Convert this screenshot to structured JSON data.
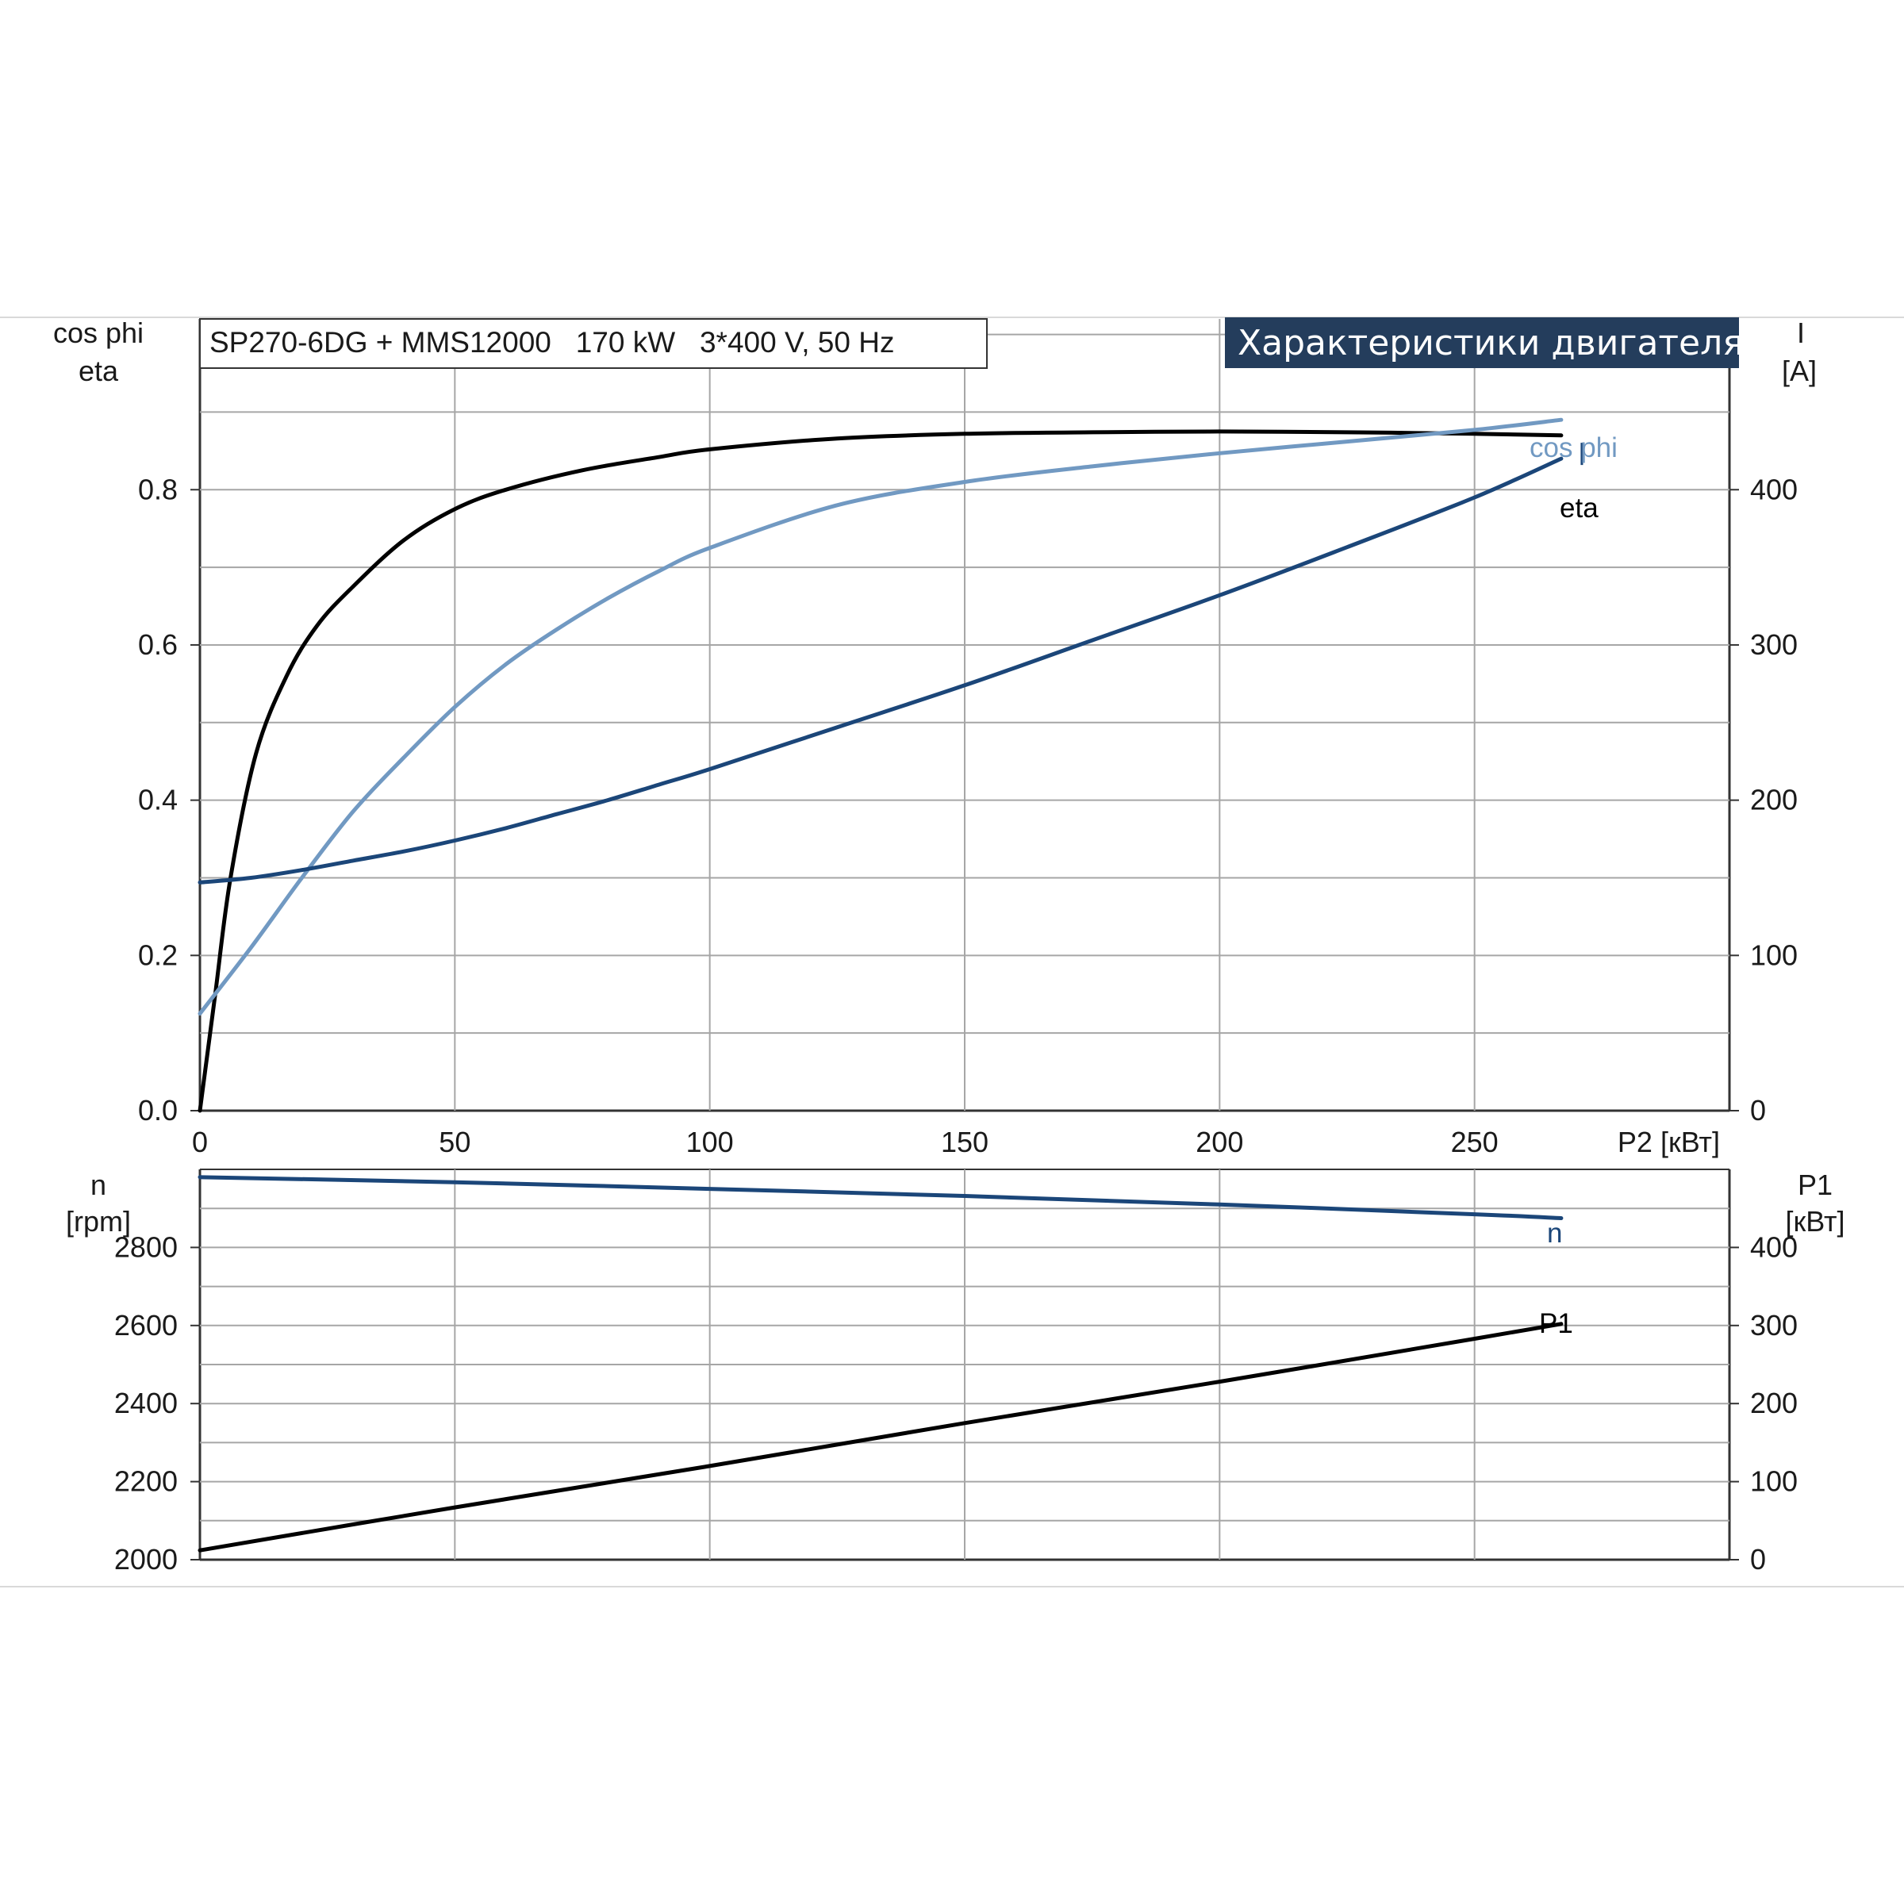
{
  "header": {
    "model_label": "SP270-6DG + MMS12000   170 kW   3*400 V, 50 Hz",
    "title": "Характеристики двигателя"
  },
  "colors": {
    "eta": "#000000",
    "cos_phi": "#7199c2",
    "current": "#1b4679",
    "speed": "#1b4679",
    "p1": "#000000",
    "title_bg": "#243d5c",
    "grid": "#a6a6a6"
  },
  "chart_data": [
    {
      "type": "line",
      "xlabel": "P2 [кВт]",
      "xlim": [
        0,
        300
      ],
      "xticks": [
        0,
        50,
        100,
        150,
        200,
        250
      ],
      "ylabel_left": [
        "cos phi",
        "eta"
      ],
      "ylim_left": [
        0,
        1.02
      ],
      "yticks_left": [
        0.0,
        0.2,
        0.4,
        0.6,
        0.8
      ],
      "ylabel_right": [
        "I",
        "[A]"
      ],
      "ylim_right": [
        0,
        510
      ],
      "yticks_right": [
        0,
        100,
        200,
        300,
        400
      ],
      "grid": true,
      "series": [
        {
          "name": "eta",
          "axis": "left",
          "x": [
            0,
            3,
            6,
            11,
            17,
            23,
            30,
            40,
            50,
            60,
            75,
            90,
            100,
            125,
            150,
            175,
            200,
            225,
            250,
            267
          ],
          "y": [
            0.0,
            0.15,
            0.3,
            0.46,
            0.56,
            0.625,
            0.675,
            0.735,
            0.775,
            0.8,
            0.825,
            0.842,
            0.852,
            0.866,
            0.872,
            0.874,
            0.875,
            0.874,
            0.872,
            0.87
          ]
        },
        {
          "name": "cos phi",
          "axis": "left",
          "x": [
            0,
            10,
            20,
            30,
            40,
            50,
            60,
            70,
            80,
            90,
            100,
            125,
            150,
            175,
            200,
            225,
            250,
            267
          ],
          "y": [
            0.125,
            0.21,
            0.3,
            0.385,
            0.455,
            0.52,
            0.575,
            0.62,
            0.66,
            0.695,
            0.725,
            0.78,
            0.81,
            0.83,
            0.847,
            0.862,
            0.877,
            0.89
          ]
        },
        {
          "name": "I",
          "axis": "right",
          "x": [
            0,
            10,
            20,
            30,
            40,
            50,
            60,
            70,
            80,
            90,
            100,
            125,
            150,
            175,
            200,
            225,
            250,
            267
          ],
          "y": [
            147,
            150,
            155,
            161,
            167,
            174,
            182,
            191,
            200,
            210,
            220,
            247,
            274,
            303,
            332,
            363,
            395,
            420
          ]
        }
      ]
    },
    {
      "type": "line",
      "xlim": [
        0,
        300
      ],
      "ylabel_left": [
        "n",
        "[rpm]"
      ],
      "ylim_left": [
        2000,
        3000
      ],
      "yticks_left": [
        2000,
        2200,
        2400,
        2600,
        2800
      ],
      "ylabel_right": [
        "P1",
        "[кВт]"
      ],
      "ylim_right": [
        0,
        500
      ],
      "yticks_right": [
        0,
        100,
        200,
        300,
        400
      ],
      "grid": true,
      "series": [
        {
          "name": "n",
          "axis": "left",
          "x": [
            0,
            50,
            100,
            150,
            200,
            250,
            267
          ],
          "y": [
            2980,
            2967,
            2950,
            2932,
            2910,
            2885,
            2875
          ]
        },
        {
          "name": "P1",
          "axis": "right",
          "x": [
            0,
            50,
            100,
            150,
            200,
            250,
            267
          ],
          "y": [
            12,
            67,
            120,
            175,
            228,
            283,
            302
          ]
        }
      ]
    }
  ]
}
